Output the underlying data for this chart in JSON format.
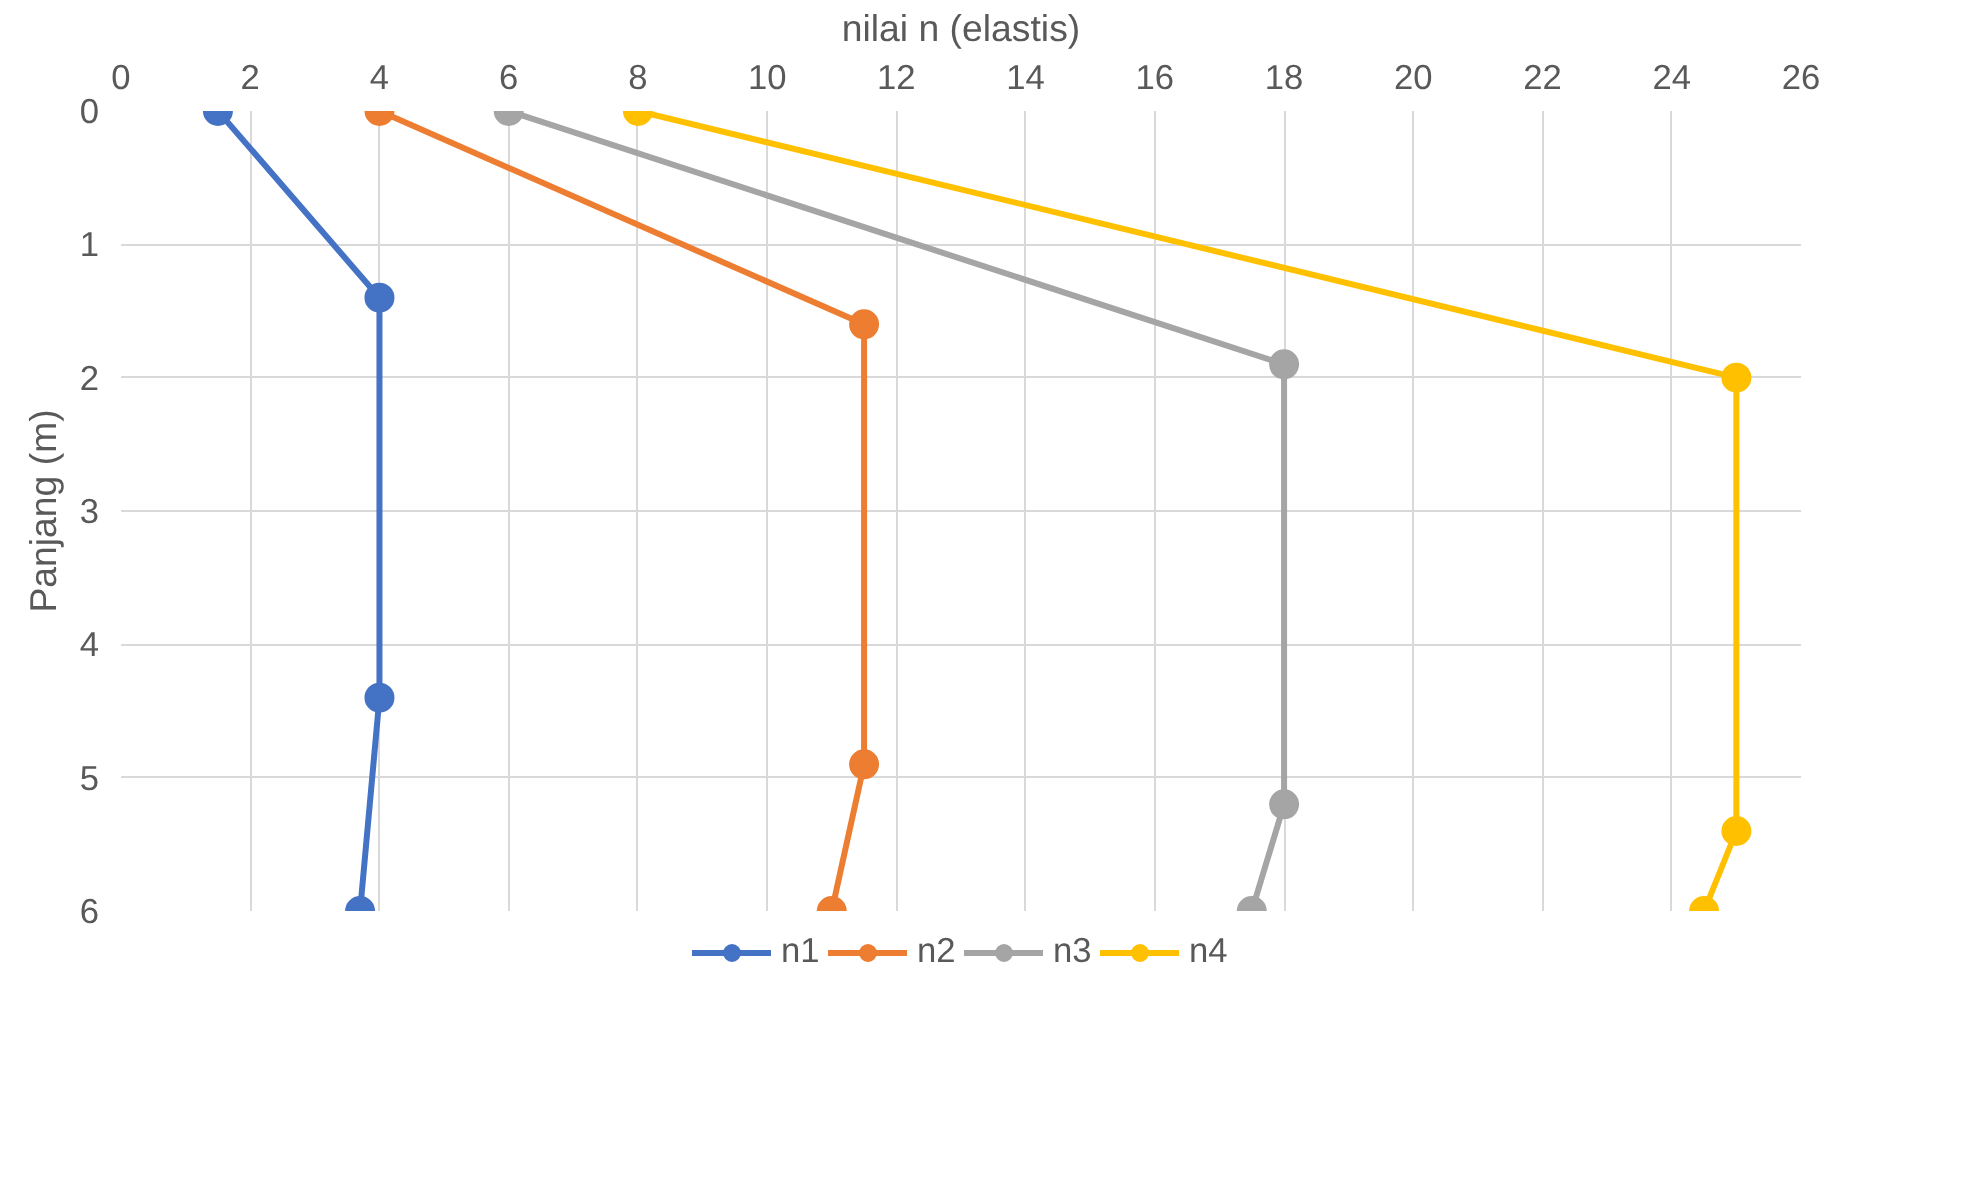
{
  "chart_data": {
    "type": "line",
    "xlabel": "nilai n (elastis)",
    "ylabel": "Panjang (m)",
    "xlim": [
      0,
      26
    ],
    "xticks": [
      0,
      2,
      4,
      6,
      8,
      10,
      12,
      14,
      16,
      18,
      20,
      22,
      24,
      26
    ],
    "ylim": [
      6,
      0
    ],
    "yticks": [
      0,
      1,
      2,
      3,
      4,
      5,
      6
    ],
    "grid": true,
    "legend": "bottom",
    "marker": "circle",
    "line_style": "solid",
    "series": [
      {
        "name": "n1",
        "color": "#4472c4",
        "x": [
          1.5,
          4,
          4,
          3.7
        ],
        "values": [
          0,
          1.4,
          4.4,
          6
        ]
      },
      {
        "name": "n2",
        "color": "#ed7d31",
        "x": [
          4,
          11.5,
          11.5,
          11
        ],
        "values": [
          0,
          1.6,
          4.9,
          6
        ]
      },
      {
        "name": "n3",
        "color": "#a5a5a5",
        "x": [
          6,
          18,
          18,
          17.5
        ],
        "values": [
          0,
          1.9,
          5.2,
          6
        ]
      },
      {
        "name": "n4",
        "color": "#ffc000",
        "x": [
          8,
          25,
          25,
          24.5
        ],
        "values": [
          0,
          2,
          5.4,
          6
        ]
      }
    ]
  }
}
